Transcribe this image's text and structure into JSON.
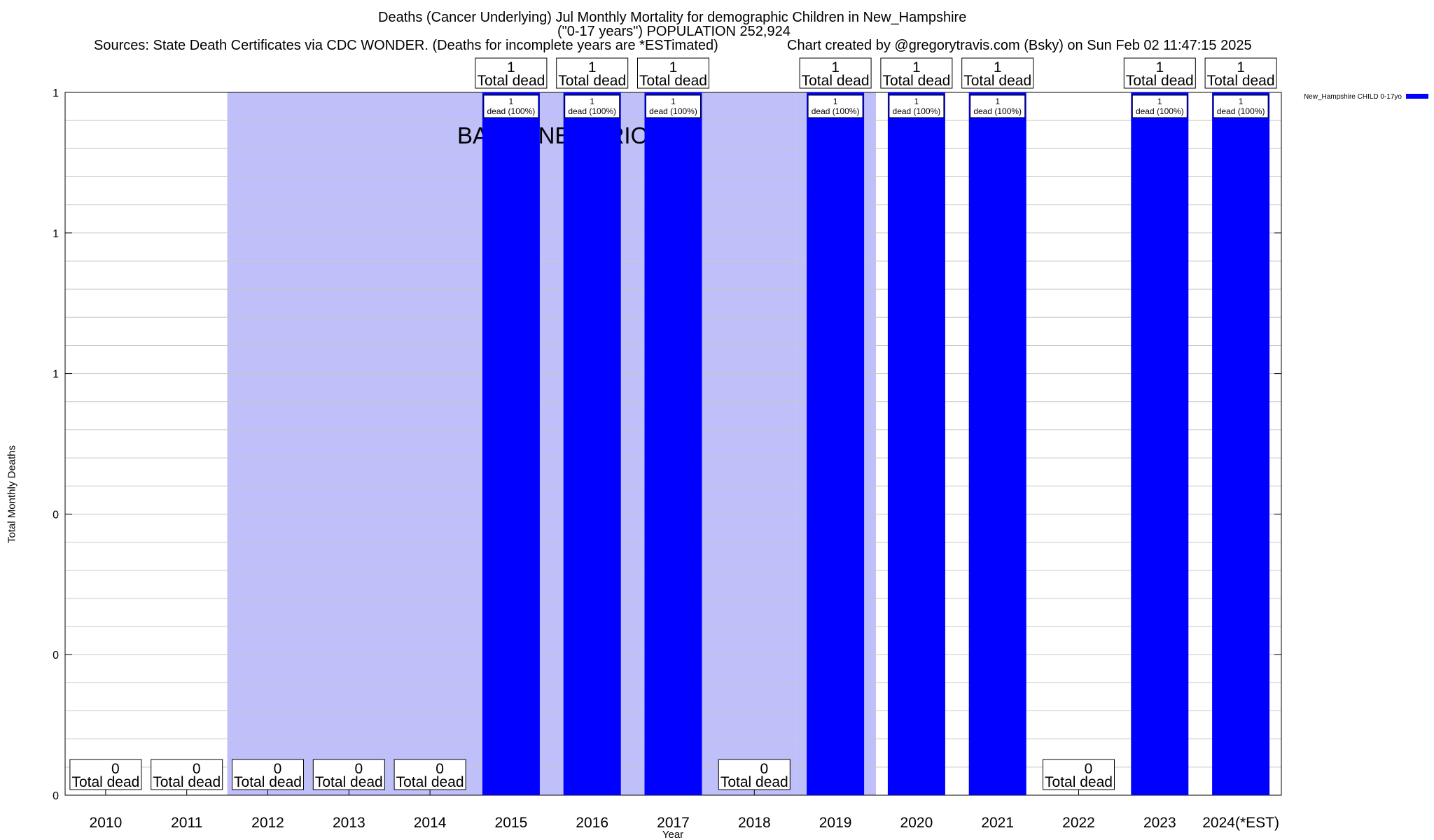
{
  "chart_data": {
    "type": "bar",
    "title_lines": [
      "Deaths (Cancer Underlying) Jul Monthly Mortality for demographic Children in New_Hampshire",
      "(\"0-17 years\") POPULATION 252,924"
    ],
    "sources": "Sources: State Death Certificates via CDC WONDER. (Deaths for incomplete years are *ESTimated)",
    "credit": "Chart created by @gregorytravis.com (Bsky) on Sun Feb 02 11:47:15 2025",
    "xlabel": "Year",
    "ylabel": "Total Monthly Deaths",
    "ylim": [
      0,
      1
    ],
    "ytick_labels": [
      "0",
      "0",
      "0",
      "1",
      "1",
      "1"
    ],
    "categories": [
      "2010",
      "2011",
      "2012",
      "2013",
      "2014",
      "2015",
      "2016",
      "2017",
      "2018",
      "2019",
      "2020",
      "2021",
      "2022",
      "2023",
      "2024(*EST)"
    ],
    "series": [
      {
        "name": "New_Hampshire CHILD 0-17yo",
        "color": "#0000ff",
        "values": [
          0,
          0,
          0,
          0,
          0,
          1,
          1,
          1,
          0,
          1,
          1,
          1,
          0,
          1,
          1
        ]
      }
    ],
    "total_labels": [
      {
        "count": "0",
        "text": "Total dead"
      },
      {
        "count": "0",
        "text": "Total dead"
      },
      {
        "count": "0",
        "text": "Total dead"
      },
      {
        "count": "0",
        "text": "Total dead"
      },
      {
        "count": "0",
        "text": "Total dead"
      },
      {
        "count": "1",
        "text": "Total dead"
      },
      {
        "count": "1",
        "text": "Total dead"
      },
      {
        "count": "1",
        "text": "Total dead"
      },
      {
        "count": "0",
        "text": "Total dead"
      },
      {
        "count": "1",
        "text": "Total dead"
      },
      {
        "count": "1",
        "text": "Total dead"
      },
      {
        "count": "1",
        "text": "Total dead"
      },
      {
        "count": "0",
        "text": "Total dead"
      },
      {
        "count": "1",
        "text": "Total dead"
      },
      {
        "count": "1",
        "text": "Total dead"
      }
    ],
    "bar_label_count": "1",
    "bar_label_text": "dead (100%)",
    "baseline_label": "BASELINE PERIOD",
    "baseline_period": [
      {
        "from": "2012",
        "to": "2018"
      },
      {
        "from": "2019",
        "to": "2019"
      }
    ],
    "shade_color": "#bfbffa",
    "legend_position": "top-right",
    "grid": true
  }
}
